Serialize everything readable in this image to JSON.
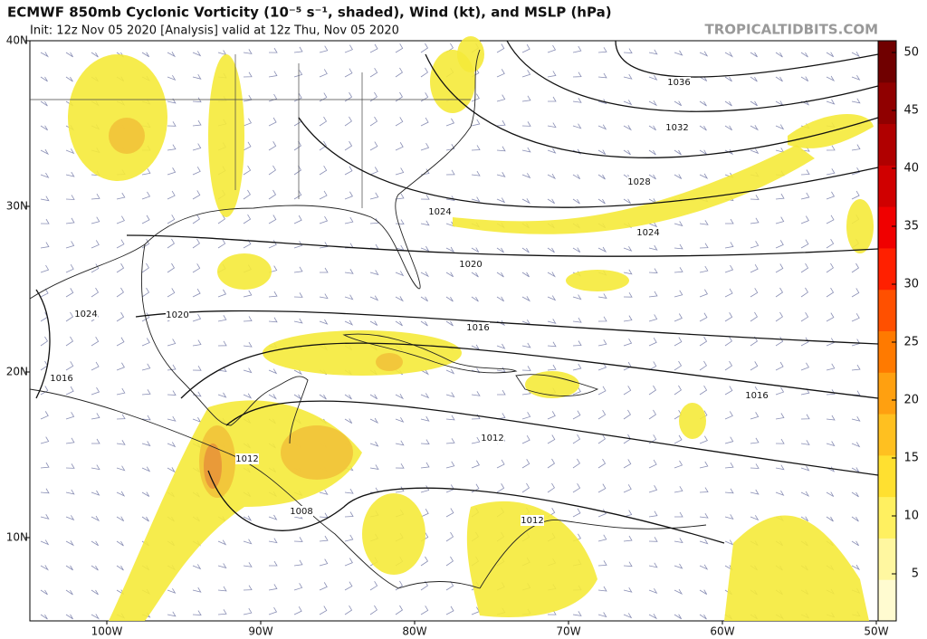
{
  "header": {
    "title": "ECMWF 850mb Cyclonic Vorticity (10⁻⁵ s⁻¹, shaded), Wind (kt), and MSLP (hPa)",
    "subtitle": "Init: 12z Nov 05 2020   [Analysis]   valid at 12z Thu, Nov 05 2020",
    "credit": "TROPICALTIDBITS.COM"
  },
  "axes": {
    "lat_labels": [
      "40N",
      "30N",
      "20N",
      "10N"
    ],
    "lon_labels": [
      "100W",
      "90W",
      "80W",
      "70W",
      "60W",
      "50W"
    ]
  },
  "colorbar": {
    "labels": [
      50,
      45,
      40,
      35,
      30,
      25,
      20,
      15,
      10,
      5
    ]
  },
  "isobar_labels": [
    "1036",
    "1032",
    "1028",
    "1024",
    "1024",
    "1020",
    "1020",
    "1024",
    "1016",
    "1016",
    "1016",
    "1012",
    "1012",
    "1012",
    "1008"
  ]
}
